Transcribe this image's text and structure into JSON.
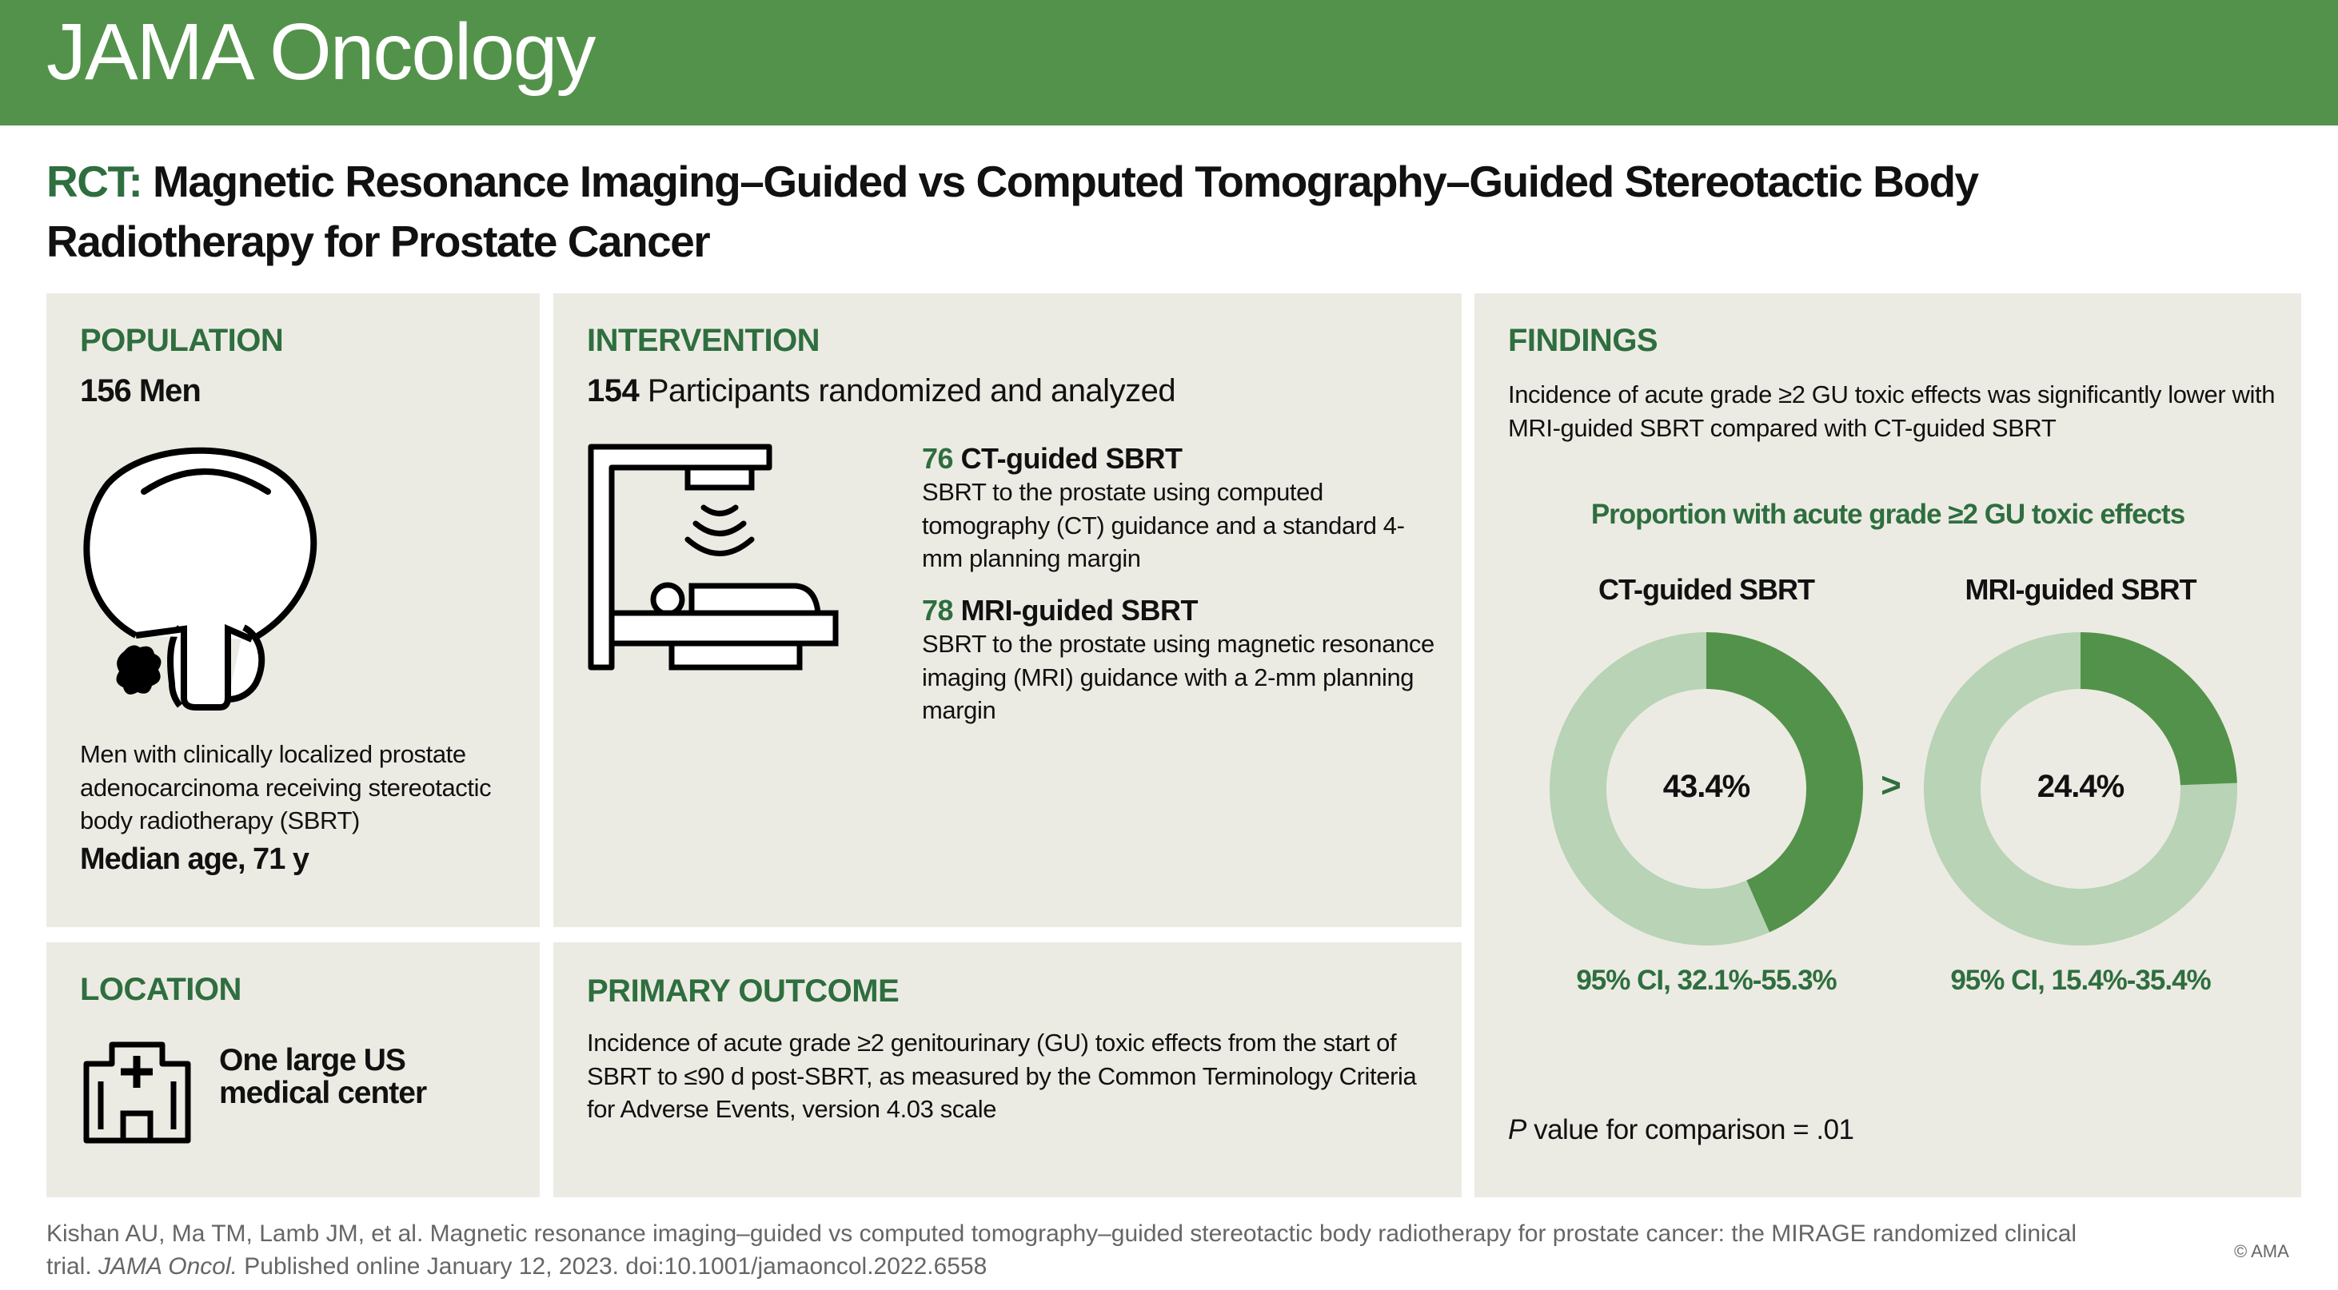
{
  "header": {
    "journal": "JAMA Oncology"
  },
  "title": {
    "prefix": "RCT:",
    "text": "Magnetic Resonance Imaging–Guided vs Computed Tomography–Guided Stereotactic Body Radiotherapy for Prostate Cancer"
  },
  "population": {
    "heading": "POPULATION",
    "count": "156 Men",
    "icon": "prostate-icon",
    "description": "Men with clinically localized prostate adenocarcinoma receiving stereotactic body radiotherapy (SBRT)",
    "median_age": "Median age, 71 y"
  },
  "intervention": {
    "heading": "INTERVENTION",
    "count": "154",
    "count_text": "Participants randomized and analyzed",
    "icon": "radiotherapy-machine-icon",
    "arms": [
      {
        "n": "76",
        "name": "CT-guided SBRT",
        "description": "SBRT to the prostate using computed tomography (CT) guidance and a standard 4-mm planning margin"
      },
      {
        "n": "78",
        "name": "MRI-guided SBRT",
        "description": "SBRT to the prostate using magnetic resonance imaging (MRI) guidance with a 2-mm planning margin"
      }
    ]
  },
  "location": {
    "heading": "LOCATION",
    "icon": "hospital-icon",
    "text": "One large US medical center"
  },
  "primary_outcome": {
    "heading": "PRIMARY OUTCOME",
    "text": "Incidence of acute grade ≥2 genitourinary (GU) toxic effects from the start of SBRT to ≤90 d post-SBRT, as measured by the Common Terminology Criteria for Adverse Events, version 4.03 scale"
  },
  "findings": {
    "heading": "FINDINGS",
    "text": "Incidence of acute grade ≥2 GU toxic effects was significantly lower with MRI-guided SBRT compared with CT-guided SBRT",
    "comparison_symbol": ">",
    "p_label": "P",
    "p_text": " value for comparison = .01"
  },
  "chart_data": {
    "type": "pie",
    "variant": "donut",
    "title": "Proportion with acute grade ≥2 GU toxic effects",
    "series": [
      {
        "name": "CT-guided SBRT",
        "value": 43.4,
        "label": "43.4%",
        "ci": "95% CI, 32.1%-55.3%"
      },
      {
        "name": "MRI-guided SBRT",
        "value": 24.4,
        "label": "24.4%",
        "ci": "95% CI, 15.4%-35.4%"
      }
    ],
    "colors": {
      "value": "#53924a",
      "remainder": "#b8d3b5"
    }
  },
  "footer": {
    "citation_1": "Kishan AU, Ma TM, Lamb JM, et al. Magnetic resonance imaging–guided vs computed tomography–guided stereotactic body radiotherapy for prostate cancer: the MIRAGE randomized clinical trial. ",
    "journal": "JAMA Oncol.",
    "citation_2": " Published online January 12, 2023. doi:10.1001/jamaoncol.2022.6558",
    "copyright": "© AMA"
  },
  "colors": {
    "header": "#53924a",
    "accent": "#2e6e3f",
    "panel": "#ecebe3"
  }
}
